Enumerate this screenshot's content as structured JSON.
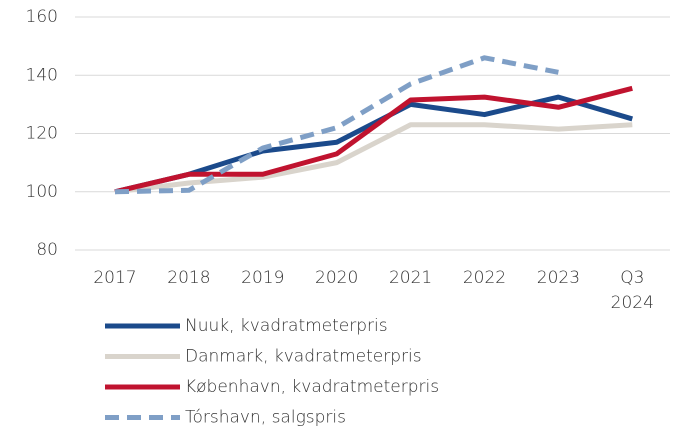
{
  "chart_data": {
    "type": "line",
    "categories": [
      "2017",
      "2018",
      "2019",
      "2020",
      "2021",
      "2022",
      "2023",
      "Q3 2024"
    ],
    "series": [
      {
        "name": "Nuuk, kvadratmeterpris",
        "color": "#1b4a8b",
        "style": "solid",
        "values": [
          100,
          106,
          114,
          117,
          130,
          126.5,
          132.5,
          125
        ]
      },
      {
        "name": "Danmark, kvadratmeterpris",
        "color": "#d9d4cc",
        "style": "solid",
        "values": [
          100,
          103,
          105,
          110,
          123,
          123,
          121.5,
          123
        ]
      },
      {
        "name": "København, kvadratmeterpris",
        "color": "#c0132f",
        "style": "solid",
        "values": [
          100,
          106,
          106,
          113,
          131.5,
          132.5,
          129,
          135.5
        ]
      },
      {
        "name": "Tórshavn, salgspris",
        "color": "#7f9fc6",
        "style": "dashed",
        "values": [
          100,
          100.5,
          115,
          122,
          137,
          146,
          141,
          null
        ]
      }
    ],
    "ylim": [
      80,
      160
    ],
    "yticks": [
      80,
      100,
      120,
      140,
      160
    ],
    "grid": true
  }
}
